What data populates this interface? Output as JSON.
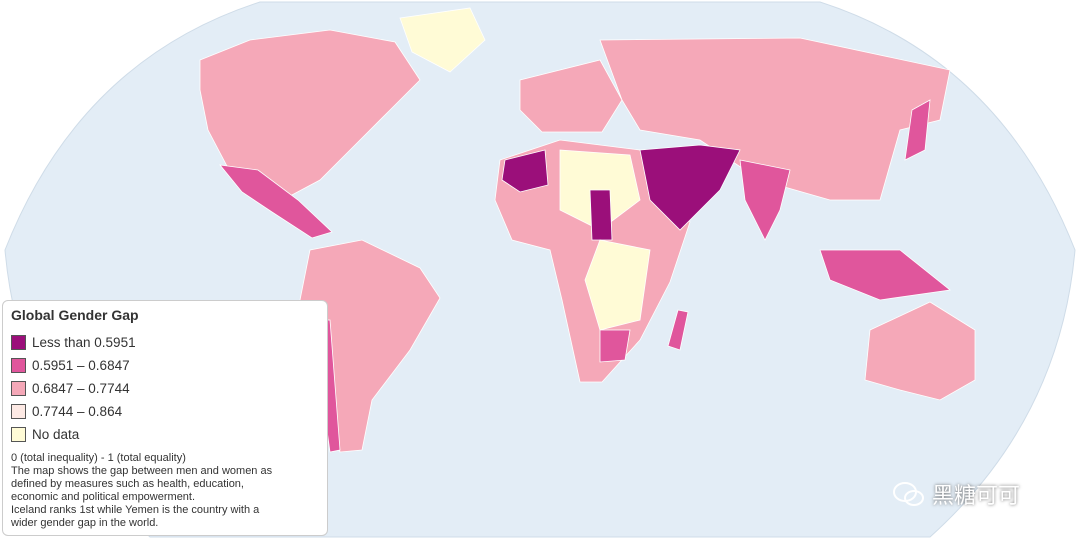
{
  "legend": {
    "title": "Global Gender Gap",
    "items": [
      {
        "label": "Less than 0.5951",
        "color": "#9b0f7a"
      },
      {
        "label": "0.5951 – 0.6847",
        "color": "#e0569c"
      },
      {
        "label": "0.6847 – 0.7744",
        "color": "#f5a8b8"
      },
      {
        "label": "0.7744 – 0.864",
        "color": "#fde9e4"
      },
      {
        "label": "No data",
        "color": "#fffbd6"
      }
    ],
    "description": [
      "0 (total inequality) - 1 (total equality)",
      "The map shows the gap between men and women as",
      "defined by measures such as health, education,",
      "economic and political empowerment.",
      "Iceland ranks 1st while Yemen is the country with a",
      "wider gender gap in the world."
    ]
  },
  "watermark": "黑糖可可"
}
